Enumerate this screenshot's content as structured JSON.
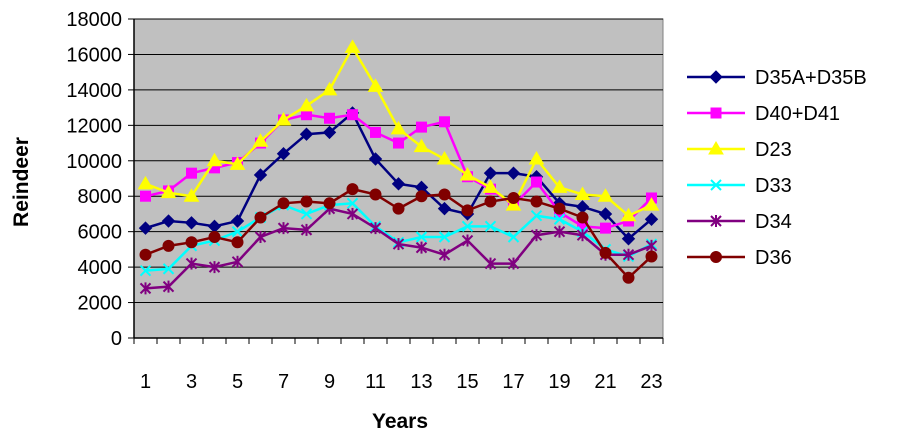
{
  "chart_data": {
    "type": "line",
    "xlabel": "Years",
    "ylabel": "Reindeer",
    "x": [
      1,
      2,
      3,
      4,
      5,
      6,
      7,
      8,
      9,
      10,
      11,
      12,
      13,
      14,
      15,
      16,
      17,
      18,
      19,
      20,
      21,
      22,
      23
    ],
    "x_tick_labels": [
      "1",
      "3",
      "5",
      "7",
      "9",
      "11",
      "13",
      "15",
      "17",
      "19",
      "21",
      "23"
    ],
    "ylim": [
      0,
      18000
    ],
    "y_ticks": [
      0,
      2000,
      4000,
      6000,
      8000,
      10000,
      12000,
      14000,
      16000,
      18000
    ],
    "y_tick_labels": [
      "0",
      "2000",
      "4000",
      "6000",
      "8000",
      "10000",
      "12000",
      "14000",
      "16000",
      "18000"
    ],
    "grid": true,
    "plot_background": "#c0c0c0",
    "legend_position": "right",
    "series": [
      {
        "name": "D35A+D35B",
        "color": "#000080",
        "marker": "diamond",
        "values": [
          6200,
          6600,
          6500,
          6300,
          6600,
          9200,
          10400,
          11500,
          11600,
          12700,
          10100,
          8700,
          8500,
          7300,
          7000,
          9300,
          9300,
          9100,
          7600,
          7400,
          7000,
          5600,
          6700
        ]
      },
      {
        "name": "D40+D41",
        "color": "#ff00ff",
        "marker": "square",
        "values": [
          8000,
          8300,
          9300,
          9600,
          9900,
          11000,
          12300,
          12600,
          12400,
          12600,
          11600,
          11000,
          11900,
          12200,
          9100,
          8400,
          7500,
          8800,
          7100,
          6300,
          6200,
          6600,
          7900
        ]
      },
      {
        "name": "D23",
        "color": "#ffff00",
        "marker": "triangle",
        "values": [
          8700,
          8200,
          8000,
          10000,
          9800,
          11100,
          12300,
          13100,
          14000,
          16400,
          14200,
          11800,
          10800,
          10100,
          9200,
          8500,
          7500,
          10100,
          8500,
          8100,
          8000,
          6900,
          7500
        ]
      },
      {
        "name": "D33",
        "color": "#00ffff",
        "marker": "x",
        "values": [
          3800,
          3900,
          5200,
          5500,
          6000,
          6800,
          7500,
          7000,
          7500,
          7600,
          6300,
          5400,
          5700,
          5700,
          6300,
          6300,
          5700,
          6900,
          6700,
          6000,
          5000,
          4600,
          5300
        ]
      },
      {
        "name": "D34",
        "color": "#800080",
        "marker": "star",
        "values": [
          2800,
          2900,
          4200,
          4000,
          4300,
          5700,
          6200,
          6100,
          7300,
          7000,
          6200,
          5300,
          5100,
          4700,
          5500,
          4200,
          4200,
          5800,
          6000,
          5800,
          4700,
          4700,
          5200
        ]
      },
      {
        "name": "D36",
        "color": "#800000",
        "marker": "circle",
        "values": [
          4700,
          5200,
          5400,
          5700,
          5400,
          6800,
          7600,
          7700,
          7600,
          8400,
          8100,
          7300,
          8000,
          8100,
          7200,
          7700,
          7900,
          7700,
          7300,
          6800,
          4800,
          3400,
          4600
        ]
      }
    ]
  }
}
